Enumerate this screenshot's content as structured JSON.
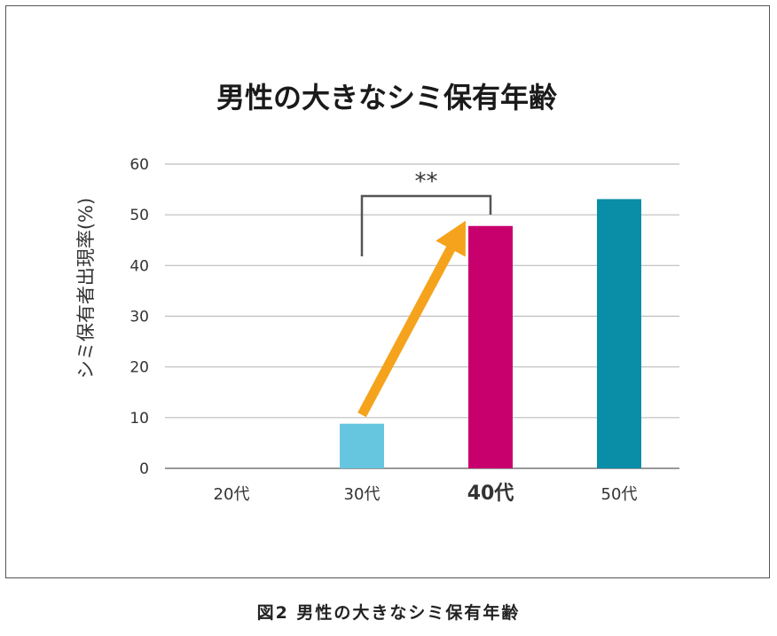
{
  "caption": "図2 男性の大きなシミ保有年齢",
  "chart_data": {
    "type": "bar",
    "title": "男性の大きなシミ保有年齢",
    "xlabel": "",
    "ylabel": "シミ保有者出現率(%)",
    "ylim": [
      0,
      60
    ],
    "yticks": [
      0,
      10,
      20,
      30,
      40,
      50,
      60
    ],
    "grid": true,
    "categories": [
      "20代",
      "30代",
      "40代",
      "50代"
    ],
    "values": [
      0,
      8.8,
      47.8,
      53.1
    ],
    "colors": [
      "#66c6e0",
      "#66c6e0",
      "#c8006e",
      "#0a8ea8"
    ],
    "highlight_category": "40代",
    "highlight_color": "#c8006e",
    "annotation": {
      "type": "significance-bracket",
      "from": "30代",
      "to": "40代",
      "label": "**"
    },
    "arrow": {
      "from": "30代",
      "to": "40代",
      "color": "#f5a31c"
    }
  }
}
